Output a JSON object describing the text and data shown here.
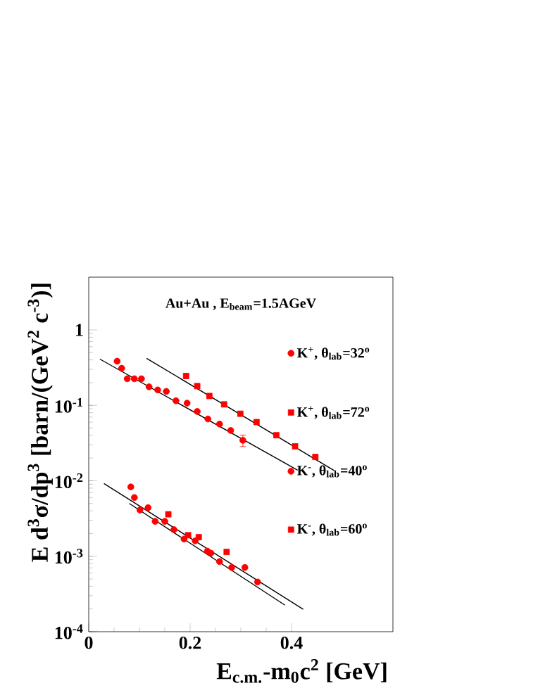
{
  "chart_data": {
    "type": "scatter",
    "title": "Au+Au , E$_{beam}$=1.5AGeV",
    "xlabel": "E$_{c.m.}$-m$_{0}$c$^{2}$ [GeV]",
    "ylabel": "E d$^{3}$σ/dp$^{3}$ [barn/(GeV$^{2}$ c$^{-3}$)]",
    "log": "y",
    "xlim": [
      0,
      0.6
    ],
    "xticks": [
      0,
      0.2,
      0.4
    ],
    "ylim": [
      0.0001,
      5
    ],
    "yticks": [
      {
        "value": 0.0001,
        "label": "10$^{-4}$"
      },
      {
        "value": 0.001,
        "label": "10$^{-3}$"
      },
      {
        "value": 0.01,
        "label": "10$^{-2}$"
      },
      {
        "value": 0.1,
        "label": "10$^{-1}$"
      },
      1
    ],
    "legend": "right",
    "series": [
      {
        "name": "K$^{+}$, θ$_{lab}$=32$^{o}$",
        "marker": "circle",
        "color": "#ff0000",
        "x": [
          0.056,
          0.065,
          0.076,
          0.09,
          0.104,
          0.119,
          0.136,
          0.153,
          0.172,
          0.194,
          0.214,
          0.235,
          0.258,
          0.28,
          0.304
        ],
        "values": [
          0.385,
          0.31,
          0.225,
          0.225,
          0.225,
          0.176,
          0.16,
          0.153,
          0.115,
          0.107,
          0.083,
          0.066,
          0.0565,
          0.0464,
          0.0344
        ],
        "errors": [
          null,
          null,
          null,
          null,
          null,
          null,
          null,
          null,
          null,
          null,
          null,
          null,
          null,
          null,
          0.006
        ]
      },
      {
        "name": "K$^{+}$, θ$_{lab}$=72$^{o}$",
        "marker": "square",
        "color": "#ff0000",
        "x": [
          0.192,
          0.214,
          0.238,
          0.267,
          0.299,
          0.331,
          0.37,
          0.407,
          0.447
        ],
        "values": [
          0.245,
          0.18,
          0.133,
          0.103,
          0.0774,
          0.06,
          0.0402,
          0.0286,
          0.0207
        ]
      },
      {
        "name": "K$^{-}$, θ$_{lab}$=40$^{o}$",
        "marker": "circle",
        "color": "#ff0000",
        "x": [
          0.083,
          0.09,
          0.101,
          0.117,
          0.131,
          0.15,
          0.168,
          0.188,
          0.21,
          0.234,
          0.241,
          0.258,
          0.282,
          0.308,
          0.333
        ],
        "values": [
          0.0083,
          0.006,
          0.0041,
          0.0044,
          0.0029,
          0.0029,
          0.00225,
          0.00169,
          0.0016,
          0.00117,
          0.0011,
          0.00085,
          0.00071,
          0.00071,
          0.000456
        ]
      },
      {
        "name": "K$^{-}$, θ$_{lab}$=60$^{o}$",
        "marker": "square",
        "color": "#ff0000",
        "x": [
          0.157,
          0.196,
          0.217,
          0.272
        ],
        "values": [
          0.0036,
          0.0019,
          0.00179,
          0.00114
        ]
      },
      {
        "type": "line",
        "marker": "none",
        "line_style": "solid",
        "color": "#000000",
        "x": [
          0.022,
          0.412
        ],
        "values": [
          0.41,
          0.0138
        ]
      },
      {
        "type": "line",
        "marker": "none",
        "line_style": "solid",
        "color": "#000000",
        "x": [
          0.114,
          0.484
        ],
        "values": [
          0.42,
          0.0137
        ]
      },
      {
        "type": "line",
        "marker": "none",
        "line_style": "solid",
        "color": "#000000",
        "x": [
          0.03,
          0.423
        ],
        "values": [
          0.0092,
          0.000198
        ]
      },
      {
        "type": "line",
        "marker": "none",
        "line_style": "solid",
        "color": "#000000",
        "x": [
          0.08,
          0.387
        ],
        "values": [
          0.005,
          0.000225
        ]
      }
    ]
  }
}
